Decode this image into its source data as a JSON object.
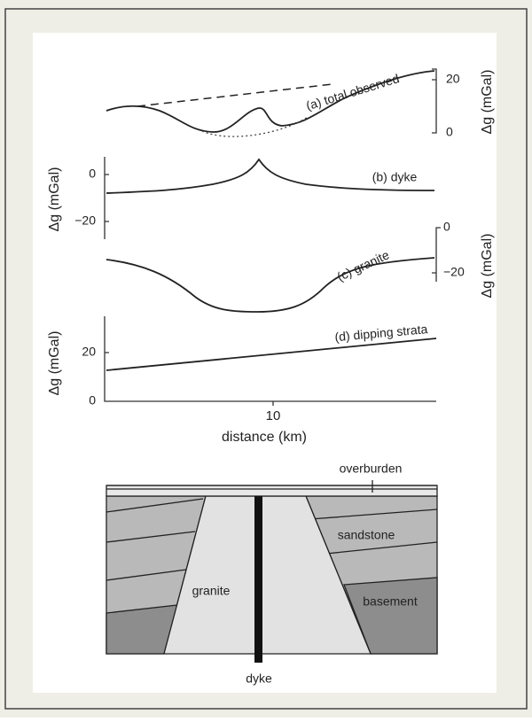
{
  "figure": {
    "panels": [
      {
        "label": "(a) total observed",
        "axis_label": "Δg (mGal)",
        "ticks": [
          "20",
          "0"
        ]
      },
      {
        "label": "(b) dyke",
        "axis_label": "Δg (mGal)",
        "ticks": [
          "0",
          "−20"
        ]
      },
      {
        "label": "(c) granite",
        "axis_label": "Δg (mGal)",
        "ticks": [
          "0",
          "−20"
        ]
      },
      {
        "label": "(d) dipping strata",
        "axis_label": "Δg (mGal)",
        "ticks": [
          "20",
          "0"
        ]
      }
    ],
    "x_tick": "10",
    "x_axis_label": "distance (km)"
  },
  "section": {
    "overburden": "overburden",
    "sandstone": "sandstone",
    "basement": "basement",
    "granite": "granite",
    "dyke": "dyke"
  }
}
